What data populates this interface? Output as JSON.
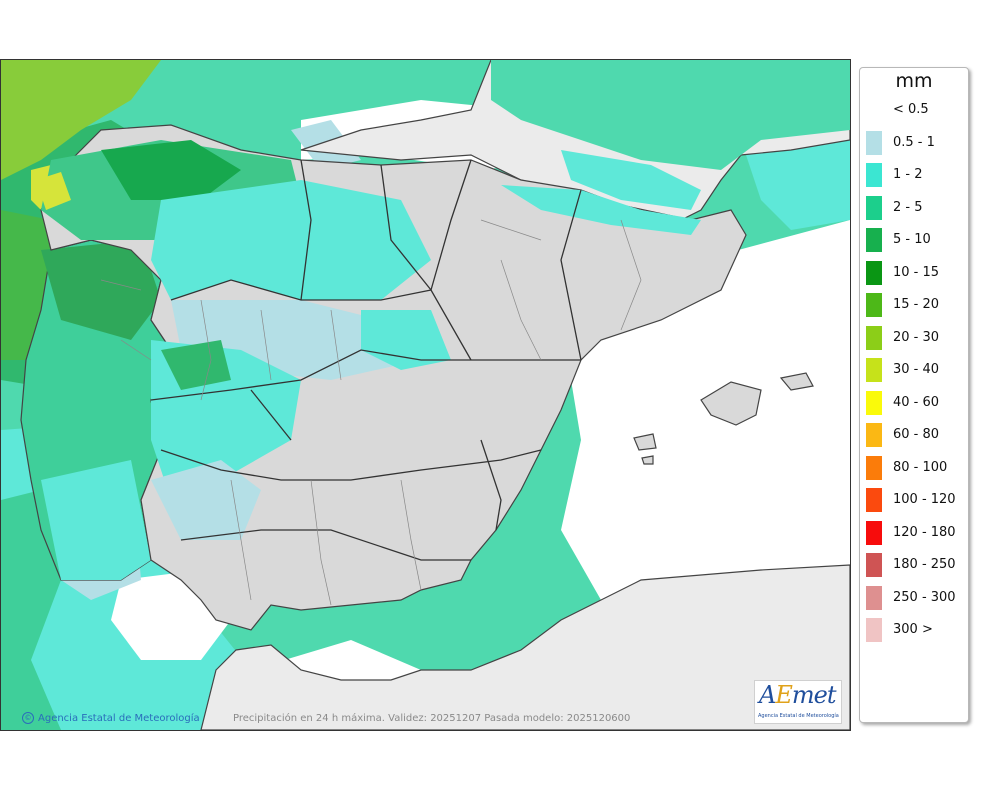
{
  "legend": {
    "title": "mm",
    "items": [
      {
        "label": "< 0.5",
        "color": "#ffffff"
      },
      {
        "label": "0.5 - 1",
        "color": "#b4dfe6"
      },
      {
        "label": "1 - 2",
        "color": "#3be6d2"
      },
      {
        "label": "2 - 5",
        "color": "#1ccf8c"
      },
      {
        "label": "5 - 10",
        "color": "#17b04e"
      },
      {
        "label": "10 - 15",
        "color": "#0a9614"
      },
      {
        "label": "15 - 20",
        "color": "#4db818"
      },
      {
        "label": "20 - 30",
        "color": "#8cce18"
      },
      {
        "label": "30 - 40",
        "color": "#c6e21a"
      },
      {
        "label": "40 - 60",
        "color": "#fafa0a"
      },
      {
        "label": "60 - 80",
        "color": "#fbb814"
      },
      {
        "label": "80 - 100",
        "color": "#fb7c0a"
      },
      {
        "label": "100 - 120",
        "color": "#fb4a0e"
      },
      {
        "label": "120 - 180",
        "color": "#f70c0c"
      },
      {
        "label": "180 - 250",
        "color": "#cf5454"
      },
      {
        "label": "250 - 300",
        "color": "#de9090"
      },
      {
        "label": "300 >",
        "color": "#f0c4c4"
      }
    ]
  },
  "footer": {
    "credit": "Agencia Estatal de Meteorología",
    "caption": "Precipitación en 24 h máxima. Validez: 20251207 Pasada modelo: 2025120600"
  },
  "logo": {
    "word_pre": "A",
    "word_e": "E",
    "word_post": "met",
    "subtitle": "Agencia Estatal de Meteorología"
  },
  "colors": {
    "sea_base": "#4fd9ae",
    "land_dry": "#d9d9d9",
    "foreign_land": "#ebebeb",
    "border": "#444444"
  }
}
